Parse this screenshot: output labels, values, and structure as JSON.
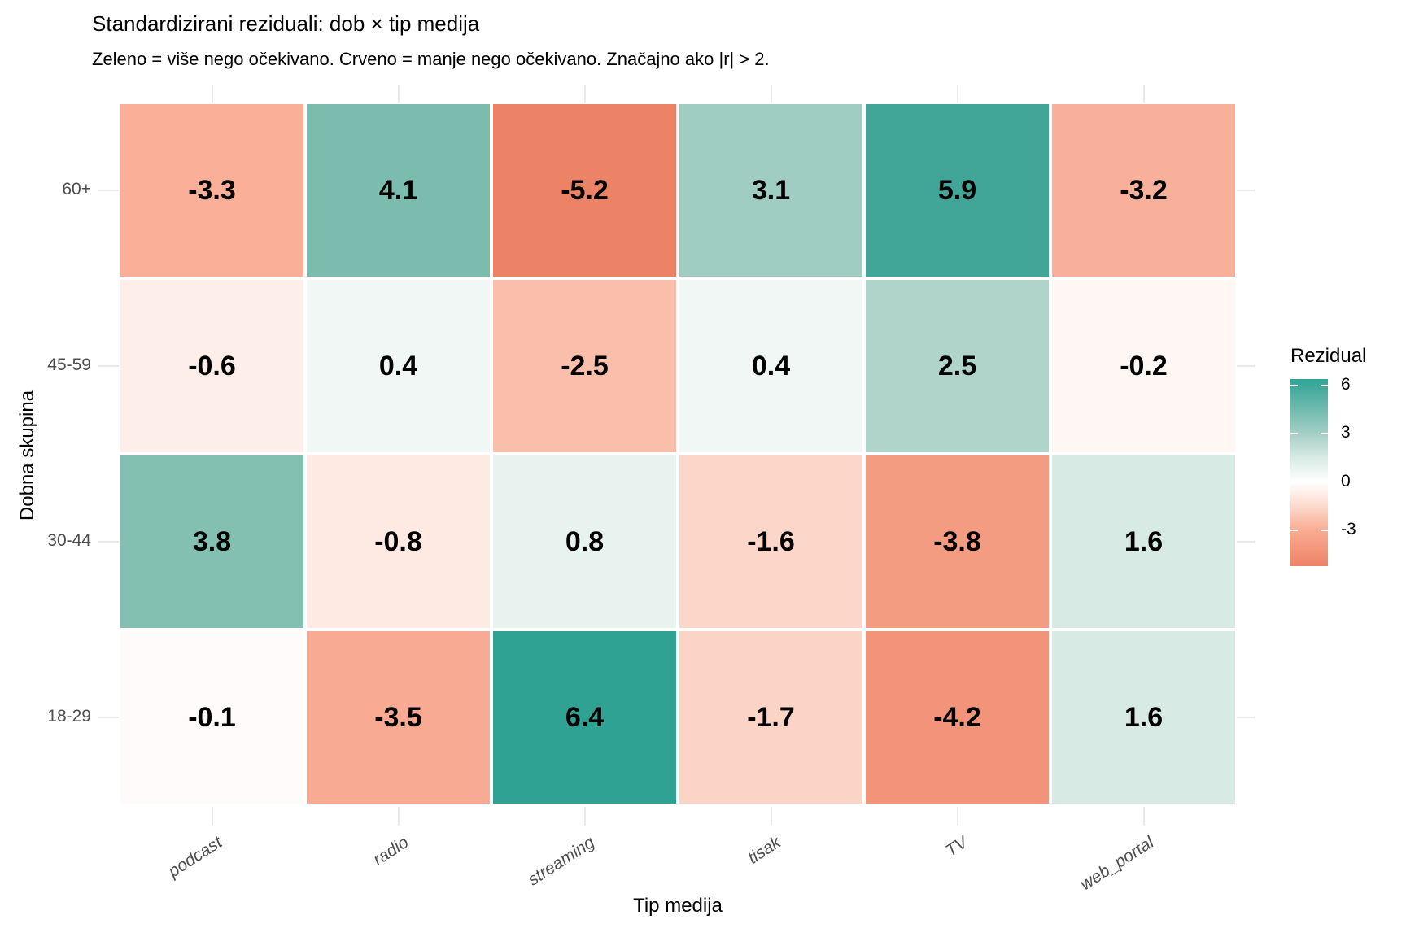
{
  "chart_data": {
    "type": "heatmap",
    "title": "Standardizirani reziduali: dob × tip medija",
    "subtitle": "Zeleno = više nego očekivano. Crveno = manje nego očekivano. Značajno ako |r| > 2.",
    "xlabel": "Tip medija",
    "ylabel": "Dobna skupina",
    "x_categories": [
      "podcast",
      "radio",
      "streaming",
      "tisak",
      "TV",
      "web_portal"
    ],
    "y_categories": [
      "60+",
      "45-59",
      "30-44",
      "18-29"
    ],
    "values": [
      [
        -3.3,
        4.1,
        -5.2,
        3.1,
        5.9,
        -3.2
      ],
      [
        -0.6,
        0.4,
        -2.5,
        0.4,
        2.5,
        -0.2
      ],
      [
        3.8,
        -0.8,
        0.8,
        -1.6,
        -3.8,
        1.6
      ],
      [
        -0.1,
        -3.5,
        6.4,
        -1.7,
        -4.2,
        1.6
      ]
    ],
    "cell_colors": [
      [
        "#f9af98",
        "#7cbcae",
        "#ec8266",
        "#a0cdc2",
        "#41a697",
        "#f9b09a"
      ],
      [
        "#feeee9",
        "#f0f7f5",
        "#fabfab",
        "#f0f7f5",
        "#b0d4ca",
        "#fff7f4"
      ],
      [
        "#84c0b2",
        "#feeae3",
        "#e8f2ee",
        "#fcd6c8",
        "#f49c82",
        "#d7eae4"
      ],
      [
        "#fffbfa",
        "#f8ab92",
        "#2fa294",
        "#fcd4c5",
        "#f29479",
        "#d7eae4"
      ]
    ],
    "grid": true,
    "grid_color": "#e9e9e9",
    "tick_text_color": "#4d4d4d",
    "value_text_color": "#000000",
    "legend": {
      "title": "Rezidual",
      "position": "right",
      "scale_max": 6.4,
      "scale_min": -5.2,
      "ticks": [
        {
          "label": "6",
          "value": 6
        },
        {
          "label": "3",
          "value": 3
        },
        {
          "label": "0",
          "value": 0
        },
        {
          "label": "-3",
          "value": -3
        }
      ],
      "gradient_stops": [
        {
          "pos": 0,
          "color": "#2fa294"
        },
        {
          "pos": 29.3,
          "color": "#a5cfc5"
        },
        {
          "pos": 41.4,
          "color": "#d5e9e3"
        },
        {
          "pos": 55.2,
          "color": "#ffffff"
        },
        {
          "pos": 69.8,
          "color": "#fcd4c5"
        },
        {
          "pos": 81.0,
          "color": "#f9ab92"
        },
        {
          "pos": 100,
          "color": "#ee8366"
        }
      ]
    },
    "colors": {
      "high": "#2fa294",
      "mid": "#ffffff",
      "low": "#ee8366"
    }
  }
}
